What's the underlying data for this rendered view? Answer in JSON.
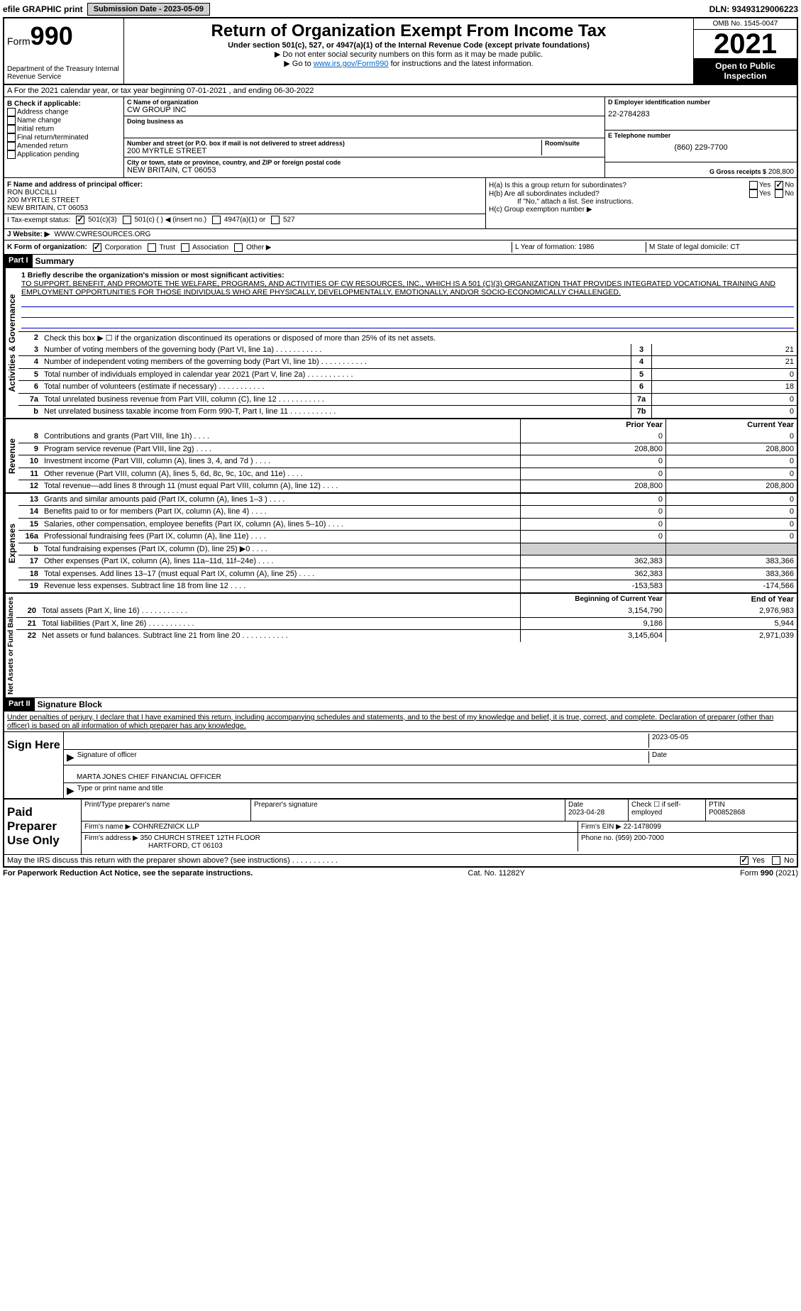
{
  "topbar": {
    "efile": "efile GRAPHIC print",
    "submission_label": "Submission Date - 2023-05-09",
    "dln": "DLN: 93493129006223"
  },
  "header": {
    "form_prefix": "Form",
    "form_num": "990",
    "dept": "Department of the Treasury Internal Revenue Service",
    "title": "Return of Organization Exempt From Income Tax",
    "subtitle": "Under section 501(c), 527, or 4947(a)(1) of the Internal Revenue Code (except private foundations)",
    "note1": "▶ Do not enter social security numbers on this form as it may be made public.",
    "note2_pre": "▶ Go to ",
    "note2_link": "www.irs.gov/Form990",
    "note2_post": " for instructions and the latest information.",
    "omb": "OMB No. 1545-0047",
    "year": "2021",
    "open": "Open to Public Inspection"
  },
  "row_a": "A For the 2021 calendar year, or tax year beginning 07-01-2021    , and ending 06-30-2022",
  "col_b": {
    "label": "B Check if applicable:",
    "items": [
      "Address change",
      "Name change",
      "Initial return",
      "Final return/terminated",
      "Amended return",
      "Application pending"
    ]
  },
  "col_c": {
    "name_label": "C Name of organization",
    "name": "CW GROUP INC",
    "dba_label": "Doing business as",
    "dba": "",
    "addr_label": "Number and street (or P.O. box if mail is not delivered to street address)",
    "room_label": "Room/suite",
    "addr": "200 MYRTLE STREET",
    "city_label": "City or town, state or province, country, and ZIP or foreign postal code",
    "city": "NEW BRITAIN, CT  06053"
  },
  "col_d": {
    "ein_label": "D Employer identification number",
    "ein": "22-2784283",
    "phone_label": "E Telephone number",
    "phone": "(860) 229-7700",
    "gross_label": "G Gross receipts $",
    "gross": "208,800"
  },
  "col_f": {
    "label": "F  Name and address of principal officer:",
    "name": "RON BUCCILLI",
    "addr1": "200 MYRTLE STREET",
    "addr2": "NEW BRITAIN, CT  06053"
  },
  "col_h": {
    "ha": "H(a)  Is this a group return for subordinates?",
    "hb": "H(b)  Are all subordinates included?",
    "hb_note": "If \"No,\" attach a list. See instructions.",
    "hc": "H(c)  Group exemption number ▶",
    "yes": "Yes",
    "no": "No"
  },
  "row_i": {
    "label": "I   Tax-exempt status:",
    "opts": [
      "501(c)(3)",
      "501(c) (  ) ◀ (insert no.)",
      "4947(a)(1) or",
      "527"
    ]
  },
  "row_j": {
    "label": "J   Website: ▶",
    "val": "WWW.CWRESOURCES.ORG"
  },
  "row_k": {
    "label": "K Form of organization:",
    "opts": [
      "Corporation",
      "Trust",
      "Association",
      "Other ▶"
    ]
  },
  "row_l": {
    "year": "L Year of formation: 1986",
    "state": "M State of legal domicile: CT"
  },
  "part1": {
    "header": "Part I",
    "title": "Summary"
  },
  "summary": {
    "mission_label": "1  Briefly describe the organization's mission or most significant activities:",
    "mission": "TO SUPPORT, BENEFIT, AND PROMOTE THE WELFARE, PROGRAMS, AND ACTIVITIES OF CW RESOURCES, INC., WHICH IS A 501 (C)(3) ORGANIZATION THAT PROVIDES INTEGRATED VOCATIONAL TRAINING AND EMPLOYMENT OPPORTUNITIES FOR THOSE INDIVIDUALS WHO ARE PHYSICALLY, DEVELOPMENTALLY, EMOTIONALLY, AND/OR SOCIO-ECONOMICALLY CHALLENGED.",
    "line2": "Check this box ▶ ☐  if the organization discontinued its operations or disposed of more than 25% of its net assets.",
    "lines_gov": [
      {
        "n": "3",
        "d": "Number of voting members of the governing body (Part VI, line 1a)",
        "b": "3",
        "v": "21"
      },
      {
        "n": "4",
        "d": "Number of independent voting members of the governing body (Part VI, line 1b)",
        "b": "4",
        "v": "21"
      },
      {
        "n": "5",
        "d": "Total number of individuals employed in calendar year 2021 (Part V, line 2a)",
        "b": "5",
        "v": "0"
      },
      {
        "n": "6",
        "d": "Total number of volunteers (estimate if necessary)",
        "b": "6",
        "v": "18"
      },
      {
        "n": "7a",
        "d": "Total unrelated business revenue from Part VIII, column (C), line 12",
        "b": "7a",
        "v": "0"
      },
      {
        "n": "b",
        "d": "Net unrelated business taxable income from Form 990-T, Part I, line 11",
        "b": "7b",
        "v": "0"
      }
    ],
    "prior_label": "Prior Year",
    "current_label": "Current Year",
    "revenue": [
      {
        "n": "8",
        "d": "Contributions and grants (Part VIII, line 1h)",
        "p": "0",
        "c": "0"
      },
      {
        "n": "9",
        "d": "Program service revenue (Part VIII, line 2g)",
        "p": "208,800",
        "c": "208,800"
      },
      {
        "n": "10",
        "d": "Investment income (Part VIII, column (A), lines 3, 4, and 7d )",
        "p": "0",
        "c": "0"
      },
      {
        "n": "11",
        "d": "Other revenue (Part VIII, column (A), lines 5, 6d, 8c, 9c, 10c, and 11e)",
        "p": "0",
        "c": "0"
      },
      {
        "n": "12",
        "d": "Total revenue—add lines 8 through 11 (must equal Part VIII, column (A), line 12)",
        "p": "208,800",
        "c": "208,800"
      }
    ],
    "expenses": [
      {
        "n": "13",
        "d": "Grants and similar amounts paid (Part IX, column (A), lines 1–3 )",
        "p": "0",
        "c": "0"
      },
      {
        "n": "14",
        "d": "Benefits paid to or for members (Part IX, column (A), line 4)",
        "p": "0",
        "c": "0"
      },
      {
        "n": "15",
        "d": "Salaries, other compensation, employee benefits (Part IX, column (A), lines 5–10)",
        "p": "0",
        "c": "0"
      },
      {
        "n": "16a",
        "d": "Professional fundraising fees (Part IX, column (A), line 11e)",
        "p": "0",
        "c": "0"
      },
      {
        "n": "b",
        "d": "Total fundraising expenses (Part IX, column (D), line 25) ▶0",
        "p": "",
        "c": "",
        "shade": true
      },
      {
        "n": "17",
        "d": "Other expenses (Part IX, column (A), lines 11a–11d, 11f–24e)",
        "p": "362,383",
        "c": "383,366"
      },
      {
        "n": "18",
        "d": "Total expenses. Add lines 13–17 (must equal Part IX, column (A), line 25)",
        "p": "362,383",
        "c": "383,366"
      },
      {
        "n": "19",
        "d": "Revenue less expenses. Subtract line 18 from line 12",
        "p": "-153,583",
        "c": "-174,566"
      }
    ],
    "begin_label": "Beginning of Current Year",
    "end_label": "End of Year",
    "netassets": [
      {
        "n": "20",
        "d": "Total assets (Part X, line 16)",
        "p": "3,154,790",
        "c": "2,976,983"
      },
      {
        "n": "21",
        "d": "Total liabilities (Part X, line 26)",
        "p": "9,186",
        "c": "5,944"
      },
      {
        "n": "22",
        "d": "Net assets or fund balances. Subtract line 21 from line 20",
        "p": "3,145,604",
        "c": "2,971,039"
      }
    ]
  },
  "vert": {
    "gov": "Activities & Governance",
    "rev": "Revenue",
    "exp": "Expenses",
    "net": "Net Assets or Fund Balances"
  },
  "part2": {
    "header": "Part II",
    "title": "Signature Block",
    "decl": "Under penalties of perjury, I declare that I have examined this return, including accompanying schedules and statements, and to the best of my knowledge and belief, it is true, correct, and complete. Declaration of preparer (other than officer) is based on all information of which preparer has any knowledge."
  },
  "sign": {
    "label": "Sign Here",
    "sig_label": "Signature of officer",
    "date": "2023-05-05",
    "date_label": "Date",
    "name": "MARTA JONES  CHIEF FINANCIAL OFFICER",
    "name_label": "Type or print name and title"
  },
  "preparer": {
    "label": "Paid Preparer Use Only",
    "name_label": "Print/Type preparer's name",
    "sig_label": "Preparer's signature",
    "date_label": "Date",
    "date": "2023-04-28",
    "check_label": "Check ☐ if self-employed",
    "ptin_label": "PTIN",
    "ptin": "P00852868",
    "firm_label": "Firm's name     ▶",
    "firm": "COHNREZNICK LLP",
    "ein_label": "Firm's EIN ▶",
    "ein": "22-1478099",
    "addr_label": "Firm's address ▶",
    "addr1": "350 CHURCH STREET 12TH FLOOR",
    "addr2": "HARTFORD, CT  06103",
    "phone_label": "Phone no.",
    "phone": "(959) 200-7000",
    "discuss": "May the IRS discuss this return with the preparer shown above? (see instructions)"
  },
  "footer": {
    "left": "For Paperwork Reduction Act Notice, see the separate instructions.",
    "mid": "Cat. No. 11282Y",
    "right": "Form 990 (2021)"
  }
}
